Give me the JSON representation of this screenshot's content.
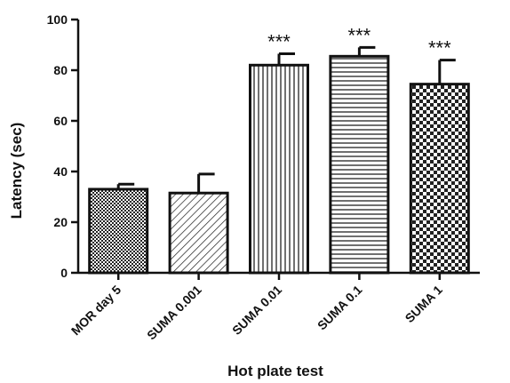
{
  "chart_data": {
    "type": "bar",
    "title": "",
    "xlabel": "Hot plate test",
    "ylabel": "Latency (sec)",
    "ylim": [
      0,
      100
    ],
    "yticks": [
      0,
      20,
      40,
      60,
      80,
      100
    ],
    "grid": false,
    "categories": [
      "MOR day 5",
      "SUMA 0.001",
      "SUMA 0.01",
      "SUMA 0.1",
      "SUMA 1"
    ],
    "values": [
      33,
      31.5,
      82,
      85.5,
      74.5
    ],
    "errors": [
      2,
      7.5,
      4.5,
      3.5,
      9.5
    ],
    "annotations": [
      "",
      "",
      "***",
      "***",
      "***"
    ],
    "patterns": [
      "fine-checker",
      "diagonal-hatch",
      "vertical-lines",
      "horizontal-lines",
      "coarse-checker"
    ]
  }
}
